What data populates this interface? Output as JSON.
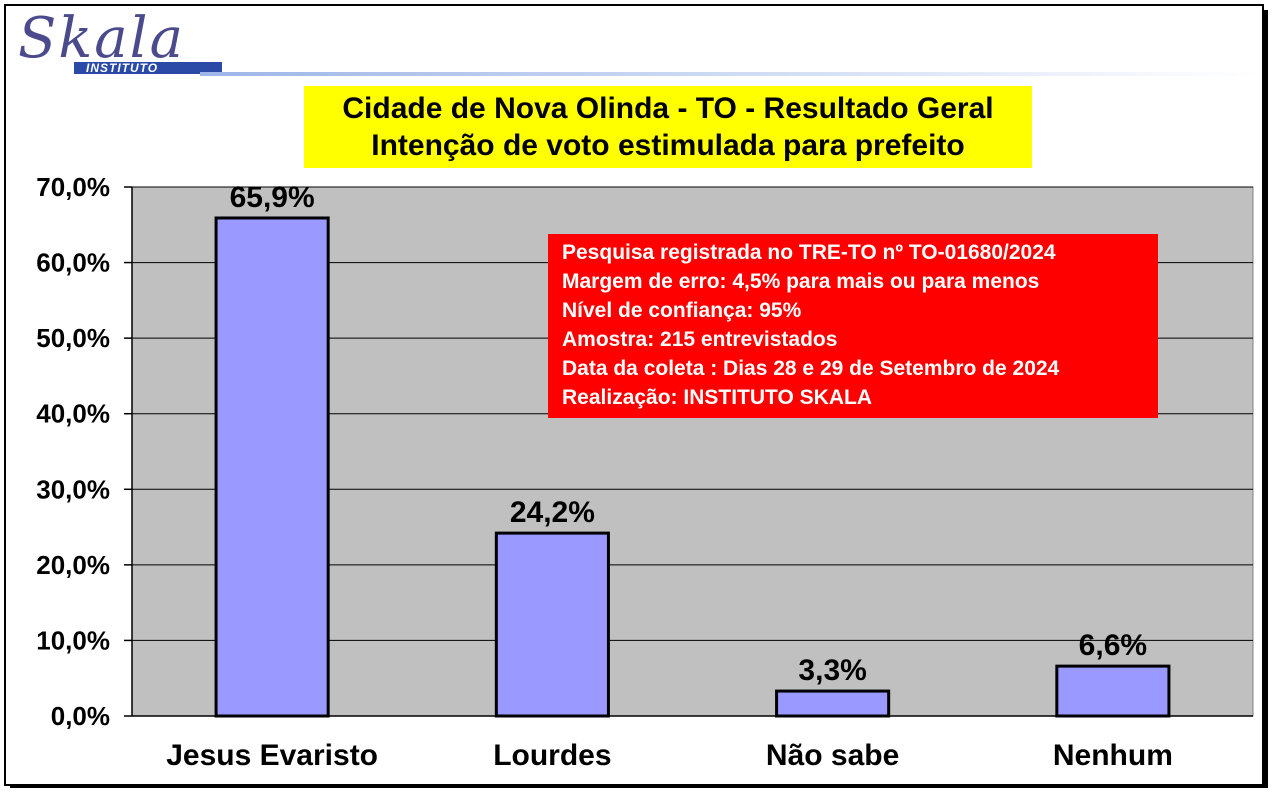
{
  "logo": {
    "brand": "Skala",
    "sub": "INSTITUTO"
  },
  "title": {
    "line1": "Cidade de Nova Olinda - TO - Resultado Geral",
    "line2": "Intenção de voto estimulada para prefeito"
  },
  "info": {
    "lines": [
      "Pesquisa registrada no TRE-TO nº TO-01680/2024",
      "Margem de erro: 4,5% para mais ou para menos",
      "Nível de confiança: 95%",
      "Amostra: 215 entrevistados",
      "Data da coleta : Dias 28 e 29 de Setembro de 2024",
      "Realização: INSTITUTO SKALA"
    ]
  },
  "colors": {
    "bar_fill": "#9999ff",
    "plot_bg": "#c0c0c0",
    "title_bg": "#ffff00",
    "info_bg": "#ff0000",
    "logo": "#4a4a8c"
  },
  "chart_data": {
    "type": "bar",
    "categories": [
      "Jesus Evaristo",
      "Lourdes",
      "Não sabe",
      "Nenhum"
    ],
    "values": [
      65.9,
      24.2,
      3.3,
      6.6
    ],
    "value_labels": [
      "65,9%",
      "24,2%",
      "3,3%",
      "6,6%"
    ],
    "title": "Cidade de Nova Olinda - TO - Resultado Geral",
    "subtitle": "Intenção de voto estimulada para prefeito",
    "xlabel": "",
    "ylabel": "",
    "ylim": [
      0,
      70
    ],
    "yticks": [
      0,
      10,
      20,
      30,
      40,
      50,
      60,
      70
    ],
    "ytick_labels": [
      "0,0%",
      "10,0%",
      "20,0%",
      "30,0%",
      "40,0%",
      "50,0%",
      "60,0%",
      "70,0%"
    ],
    "grid": true,
    "legend": "none"
  }
}
